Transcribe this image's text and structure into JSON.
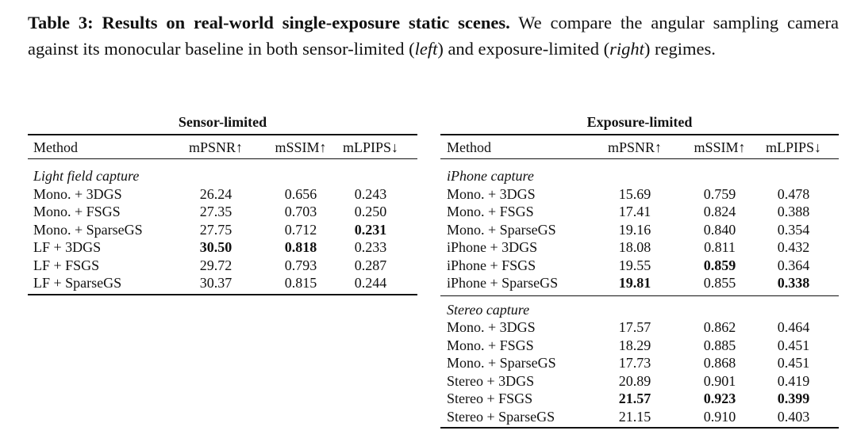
{
  "caption": {
    "title": "Table 3: Results on real-world single-exposure static scenes.",
    "text_a": "We compare the angular sampling camera against its monocular baseline in both sensor-limited (",
    "em_a": "left",
    "text_b": ") and exposure-limited (",
    "em_b": "right",
    "text_c": ") regimes."
  },
  "tables": [
    {
      "title": "Sensor-limited",
      "headers": [
        "Method",
        "mPSNR↑",
        "mSSIM↑",
        "mLPIPS↓"
      ],
      "groups": [
        {
          "label": "Light field capture",
          "best": [
            3,
            3,
            2
          ],
          "rows": [
            [
              "Mono. + 3DGS",
              "26.24",
              "0.656",
              "0.243"
            ],
            [
              "Mono. + FSGS",
              "27.35",
              "0.703",
              "0.250"
            ],
            [
              "Mono. + SparseGS",
              "27.75",
              "0.712",
              "0.231"
            ],
            [
              "LF + 3DGS",
              "30.50",
              "0.818",
              "0.233"
            ],
            [
              "LF + FSGS",
              "29.72",
              "0.793",
              "0.287"
            ],
            [
              "LF + SparseGS",
              "30.37",
              "0.815",
              "0.244"
            ]
          ]
        }
      ]
    },
    {
      "title": "Exposure-limited",
      "headers": [
        "Method",
        "mPSNR↑",
        "mSSIM↑",
        "mLPIPS↓"
      ],
      "groups": [
        {
          "label": "iPhone capture",
          "best": [
            5,
            4,
            5
          ],
          "rows": [
            [
              "Mono. + 3DGS",
              "15.69",
              "0.759",
              "0.478"
            ],
            [
              "Mono. + FSGS",
              "17.41",
              "0.824",
              "0.388"
            ],
            [
              "Mono. + SparseGS",
              "19.16",
              "0.840",
              "0.354"
            ],
            [
              "iPhone + 3DGS",
              "18.08",
              "0.811",
              "0.432"
            ],
            [
              "iPhone + FSGS",
              "19.55",
              "0.859",
              "0.364"
            ],
            [
              "iPhone + SparseGS",
              "19.81",
              "0.855",
              "0.338"
            ]
          ]
        },
        {
          "label": "Stereo capture",
          "best": [
            4,
            4,
            4
          ],
          "rows": [
            [
              "Mono. + 3DGS",
              "17.57",
              "0.862",
              "0.464"
            ],
            [
              "Mono. + FSGS",
              "18.29",
              "0.885",
              "0.451"
            ],
            [
              "Mono. + SparseGS",
              "17.73",
              "0.868",
              "0.451"
            ],
            [
              "Stereo + 3DGS",
              "20.89",
              "0.901",
              "0.419"
            ],
            [
              "Stereo + FSGS",
              "21.57",
              "0.923",
              "0.399"
            ],
            [
              "Stereo + SparseGS",
              "21.15",
              "0.910",
              "0.403"
            ]
          ]
        }
      ]
    }
  ]
}
